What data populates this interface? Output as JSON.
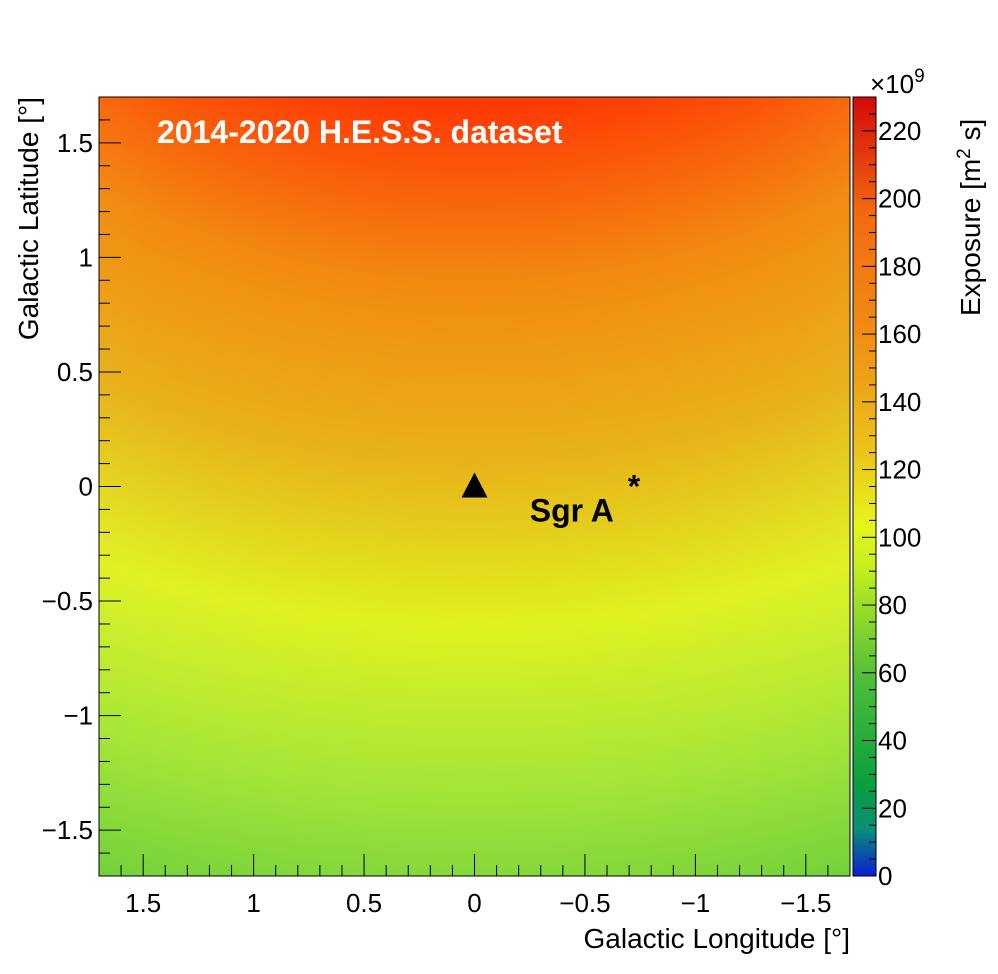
{
  "chart_data": {
    "type": "heatmap",
    "title": "2014-2020 H.E.S.S. dataset",
    "xlabel": "Galactic Longitude [°]",
    "ylabel": "Galactic Latitude [°]",
    "xlim": [
      1.7,
      -1.7
    ],
    "ylim": [
      -1.7,
      1.7
    ],
    "x_reversed": true,
    "x_ticks": [
      1.5,
      1,
      0.5,
      0,
      -0.5,
      -1,
      -1.5
    ],
    "x_tick_labels": [
      "1.5",
      "1",
      "0.5",
      "0",
      "−0.5",
      "−1",
      "−1.5"
    ],
    "y_ticks": [
      1.5,
      1,
      0.5,
      0,
      -0.5,
      -1,
      -1.5
    ],
    "y_tick_labels": [
      "1.5",
      "1",
      "0.5",
      "0",
      "−0.5",
      "−1",
      "−1.5"
    ],
    "colorbar": {
      "label_main": "Exposure [m",
      "label_sup": "2",
      "label_end": " s]",
      "multiplier": "×10",
      "multiplier_exp": "9",
      "range": [
        0,
        230
      ],
      "ticks": [
        0,
        20,
        40,
        60,
        80,
        100,
        120,
        140,
        160,
        180,
        200,
        220
      ],
      "tick_labels": [
        "0",
        "20",
        "40",
        "60",
        "80",
        "100",
        "120",
        "140",
        "160",
        "180",
        "200",
        "220"
      ]
    },
    "exposure_samples": [
      {
        "l": 0,
        "b": 1.5,
        "value": 205
      },
      {
        "l": 0,
        "b": 0.5,
        "value": 150
      },
      {
        "l": 0,
        "b": 0,
        "value": 125
      },
      {
        "l": 0,
        "b": -0.5,
        "value": 105
      },
      {
        "l": 0,
        "b": -1.0,
        "value": 95
      },
      {
        "l": 0,
        "b": -1.5,
        "value": 75
      },
      {
        "l": 1.6,
        "b": 1.6,
        "value": 140
      },
      {
        "l": 1.6,
        "b": 0,
        "value": 95
      },
      {
        "l": 1.6,
        "b": -1.6,
        "value": 40
      },
      {
        "l": -1.6,
        "b": 1.6,
        "value": 145
      },
      {
        "l": -1.6,
        "b": 0,
        "value": 100
      },
      {
        "l": -1.6,
        "b": -1.6,
        "value": 50
      }
    ],
    "markers": [
      {
        "name": "Sgr A",
        "superscript": "*",
        "l": 0,
        "b": 0,
        "symbol": "triangle",
        "label_l": -0.25,
        "label_b": -0.11
      }
    ],
    "grid": false
  }
}
